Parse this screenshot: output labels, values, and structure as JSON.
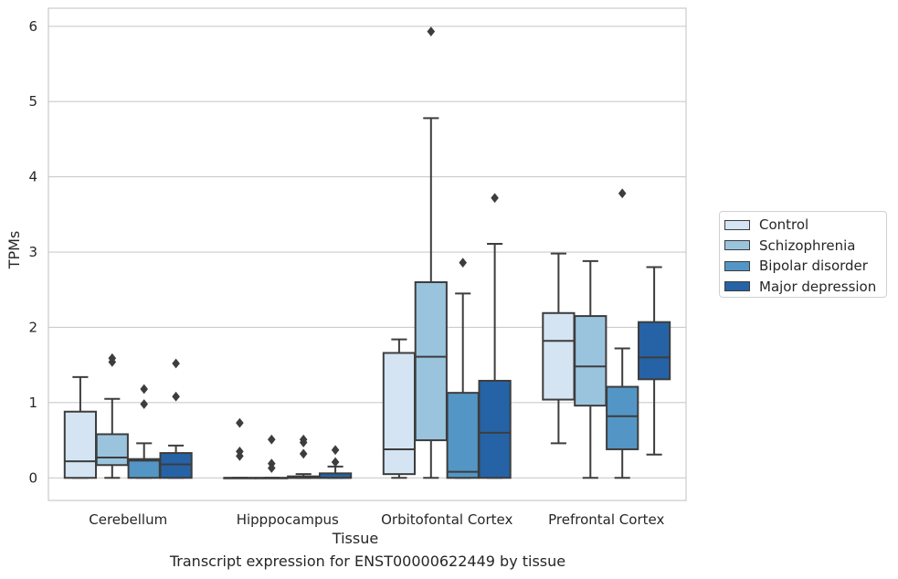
{
  "chart_data": {
    "type": "box",
    "title": "Transcript expression for ENST00000622449 by tissue",
    "xlabel": "Tissue",
    "ylabel": "TPMs",
    "ylim": [
      -0.3,
      6.24
    ],
    "yticks": [
      "0",
      "1",
      "2",
      "3",
      "4",
      "5",
      "6"
    ],
    "ytick_values": [
      0,
      1,
      2,
      3,
      4,
      5,
      6
    ],
    "grid": "horizontal",
    "legend_position": "right",
    "categories": [
      "Cerebellum",
      "Hipppocampus",
      "Orbitofontal Cortex",
      "Prefrontal Cortex"
    ],
    "series": [
      {
        "name": "Control",
        "color": "#d4e4f3",
        "boxes": [
          {
            "whisker_low": 0.0,
            "q1": 0.0,
            "median": 0.22,
            "q3": 0.88,
            "whisker_high": 1.34,
            "outliers": []
          },
          {
            "whisker_low": 0.0,
            "q1": 0.0,
            "median": 0.0,
            "q3": 0.0,
            "whisker_high": 0.0,
            "outliers": [
              0.73,
              0.35,
              0.29
            ]
          },
          {
            "whisker_low": 0.0,
            "q1": 0.05,
            "median": 0.38,
            "q3": 1.66,
            "whisker_high": 1.84,
            "outliers": []
          },
          {
            "whisker_low": 0.46,
            "q1": 1.04,
            "median": 1.82,
            "q3": 2.19,
            "whisker_high": 2.98,
            "outliers": []
          }
        ]
      },
      {
        "name": "Schizophrenia",
        "color": "#9ac4de",
        "boxes": [
          {
            "whisker_low": 0.0,
            "q1": 0.17,
            "median": 0.27,
            "q3": 0.58,
            "whisker_high": 1.05,
            "outliers": [
              1.59,
              1.54
            ]
          },
          {
            "whisker_low": 0.0,
            "q1": 0.0,
            "median": 0.0,
            "q3": 0.0,
            "whisker_high": 0.0,
            "outliers": [
              0.51,
              0.19,
              0.13
            ]
          },
          {
            "whisker_low": 0.0,
            "q1": 0.5,
            "median": 1.61,
            "q3": 2.6,
            "whisker_high": 4.78,
            "outliers": [
              5.93
            ]
          },
          {
            "whisker_low": 0.0,
            "q1": 0.96,
            "median": 1.48,
            "q3": 2.15,
            "whisker_high": 2.88,
            "outliers": []
          }
        ]
      },
      {
        "name": "Bipolar disorder",
        "color": "#5396c6",
        "boxes": [
          {
            "whisker_low": 0.0,
            "q1": 0.0,
            "median": 0.23,
            "q3": 0.25,
            "whisker_high": 0.46,
            "outliers": [
              1.18,
              0.98
            ]
          },
          {
            "whisker_low": 0.0,
            "q1": 0.0,
            "median": 0.0,
            "q3": 0.02,
            "whisker_high": 0.05,
            "outliers": [
              0.51,
              0.47,
              0.32
            ]
          },
          {
            "whisker_low": 0.0,
            "q1": 0.0,
            "median": 0.08,
            "q3": 1.13,
            "whisker_high": 2.45,
            "outliers": [
              2.86
            ]
          },
          {
            "whisker_low": 0.0,
            "q1": 0.38,
            "median": 0.82,
            "q3": 1.21,
            "whisker_high": 1.72,
            "outliers": [
              3.78
            ]
          }
        ]
      },
      {
        "name": "Major depression",
        "color": "#2563a6",
        "boxes": [
          {
            "whisker_low": 0.0,
            "q1": 0.0,
            "median": 0.18,
            "q3": 0.33,
            "whisker_high": 0.43,
            "outliers": [
              1.52,
              1.08
            ]
          },
          {
            "whisker_low": 0.0,
            "q1": 0.0,
            "median": 0.0,
            "q3": 0.06,
            "whisker_high": 0.15,
            "outliers": [
              0.37,
              0.21
            ]
          },
          {
            "whisker_low": 0.0,
            "q1": 0.0,
            "median": 0.6,
            "q3": 1.29,
            "whisker_high": 3.11,
            "outliers": [
              3.72
            ]
          },
          {
            "whisker_low": 0.31,
            "q1": 1.31,
            "median": 1.6,
            "q3": 2.07,
            "whisker_high": 2.8,
            "outliers": []
          }
        ]
      }
    ]
  }
}
